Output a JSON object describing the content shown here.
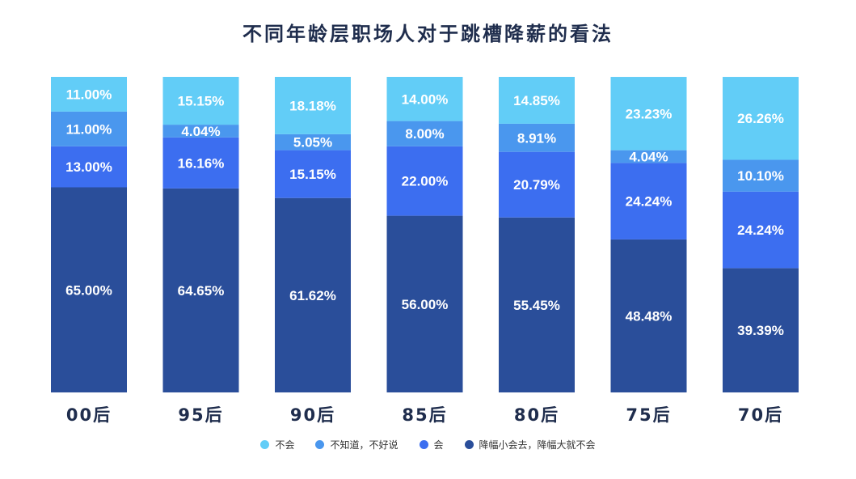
{
  "chart_data": {
    "type": "bar",
    "stacked": true,
    "title": "不同年龄层职场人对于跳槽降薪的看法",
    "categories": [
      "00后",
      "95后",
      "90后",
      "85后",
      "80后",
      "75后",
      "70后"
    ],
    "series": [
      {
        "name": "降幅小会去，降幅大就不会",
        "color": "#2a4e9a",
        "values": [
          65.0,
          64.65,
          61.62,
          56.0,
          55.45,
          48.48,
          39.39
        ]
      },
      {
        "name": "会",
        "color": "#3c6ef0",
        "values": [
          13.0,
          16.16,
          15.15,
          22.0,
          20.79,
          24.24,
          24.24
        ]
      },
      {
        "name": "不知道，不好说",
        "color": "#4a97ee",
        "values": [
          11.0,
          4.04,
          5.05,
          8.0,
          8.91,
          4.04,
          10.1
        ]
      },
      {
        "name": "不会",
        "color": "#62cdf7",
        "values": [
          11.0,
          15.15,
          18.18,
          14.0,
          14.85,
          23.23,
          26.26
        ]
      }
    ],
    "labels": [
      [
        "65.00%",
        "64.65%",
        "61.62%",
        "56.00%",
        "55.45%",
        "48.48%",
        "39.39%"
      ],
      [
        "13.00%",
        "16.16%",
        "15.15%",
        "22.00%",
        "20.79%",
        "24.24%",
        "24.24%"
      ],
      [
        "11.00%",
        "4.04%",
        "5.05%",
        "8.00%",
        "8.91%",
        "4.04%",
        "10.10%"
      ],
      [
        "11.00%",
        "15.15%",
        "18.18%",
        "14.00%",
        "14.85%",
        "23.23%",
        "26.26%"
      ]
    ],
    "ylim": [
      0,
      100
    ],
    "grid": false,
    "legend_position": "bottom",
    "legend_order": [
      "不会",
      "不知道，不好说",
      "会",
      "降幅小会去，降幅大就不会"
    ]
  }
}
